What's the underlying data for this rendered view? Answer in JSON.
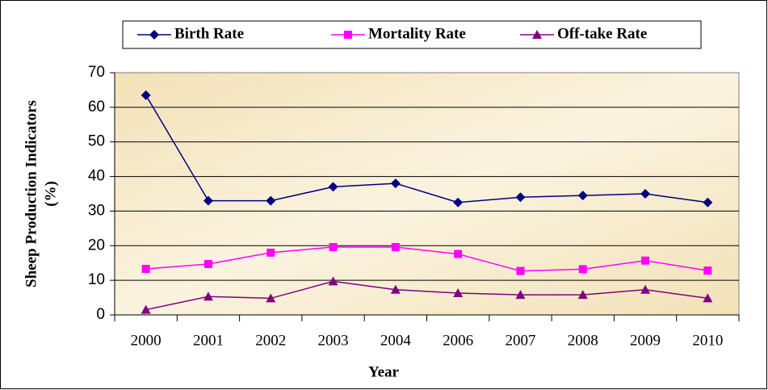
{
  "chart_data": {
    "type": "line",
    "xlabel": "Year",
    "ylabel": [
      "Sheep Production Indicators",
      "(%)"
    ],
    "categories": [
      "2000",
      "2001",
      "2002",
      "2003",
      "2004",
      "2006",
      "2007",
      "2008",
      "2009",
      "2010"
    ],
    "series": [
      {
        "name": "Birth Rate",
        "color": "#000080",
        "marker": "diamond",
        "values": [
          63.5,
          33,
          33,
          37,
          38,
          32.5,
          34,
          34.5,
          35,
          32.5
        ]
      },
      {
        "name": "Mortality Rate",
        "color": "#ff00ff",
        "marker": "square",
        "values": [
          13.3,
          14.7,
          18,
          19.6,
          19.6,
          17.6,
          12.7,
          13.2,
          15.7,
          12.8
        ]
      },
      {
        "name": "Off-take Rate",
        "color": "#800080",
        "marker": "triangle",
        "values": [
          1.5,
          5.3,
          4.8,
          9.7,
          7.3,
          6.3,
          5.8,
          5.8,
          7.3,
          4.8
        ]
      }
    ],
    "ylim": [
      0,
      70
    ],
    "yticks": [
      0,
      10,
      20,
      30,
      40,
      50,
      60,
      70
    ],
    "grid": true,
    "legend": "top"
  }
}
